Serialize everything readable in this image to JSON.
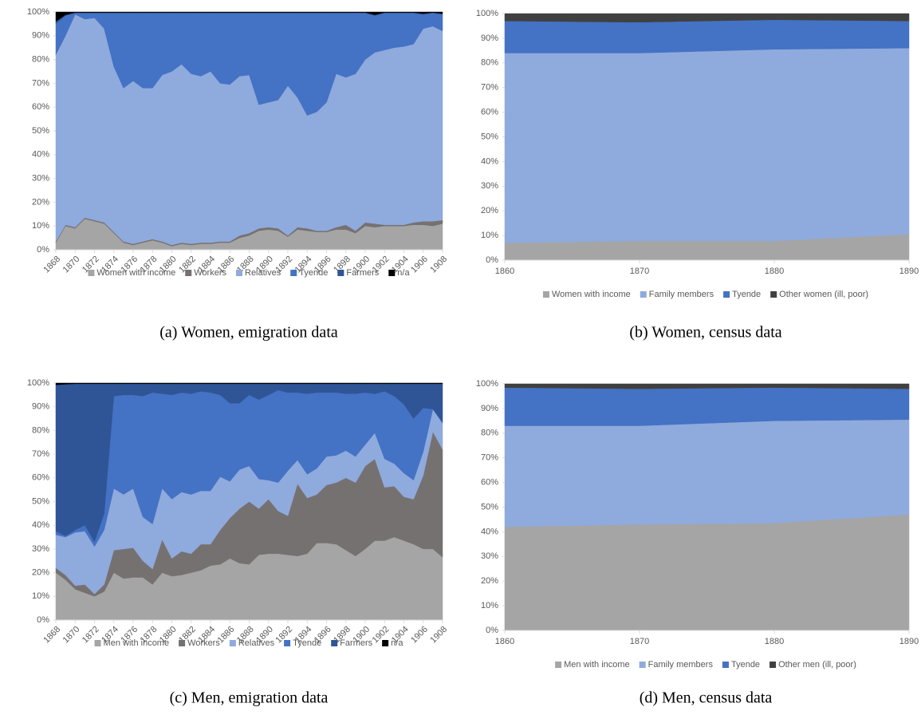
{
  "chart_data": [
    {
      "type": "area",
      "caption": "(a) Women, emigration data",
      "x": [
        1868,
        1869,
        1870,
        1871,
        1872,
        1873,
        1874,
        1875,
        1876,
        1877,
        1878,
        1879,
        1880,
        1881,
        1882,
        1883,
        1884,
        1885,
        1886,
        1887,
        1888,
        1889,
        1890,
        1891,
        1892,
        1893,
        1894,
        1895,
        1896,
        1897,
        1898,
        1899,
        1900,
        1901,
        1902,
        1903,
        1904,
        1905,
        1906,
        1907,
        1908
      ],
      "xlim": [
        1868,
        1908
      ],
      "xticks": [
        1868,
        1870,
        1872,
        1874,
        1876,
        1878,
        1880,
        1882,
        1884,
        1886,
        1888,
        1890,
        1892,
        1894,
        1896,
        1898,
        1900,
        1902,
        1904,
        1906,
        1908
      ],
      "ylim": [
        0,
        100
      ],
      "yticks": [
        {
          "value": 0,
          "label": "0%"
        },
        {
          "value": 10,
          "label": "10%"
        },
        {
          "value": 20,
          "label": "20%"
        },
        {
          "value": 30,
          "label": "30%"
        },
        {
          "value": 40,
          "label": "40%"
        },
        {
          "value": 50,
          "label": "50%"
        },
        {
          "value": 60,
          "label": "60%"
        },
        {
          "value": 70,
          "label": "70%"
        },
        {
          "value": 80,
          "label": "80%"
        },
        {
          "value": 90,
          "label": "90%"
        },
        {
          "value": 100,
          "label": "100%"
        }
      ],
      "series": [
        {
          "name": "Women with income",
          "color": "#a5a5a5",
          "values": [
            3,
            10,
            9,
            13,
            12,
            11,
            7,
            3,
            2,
            3,
            4,
            3,
            1.5,
            2.5,
            2,
            2.5,
            2.5,
            3,
            3,
            5,
            6,
            8,
            8.5,
            8,
            5.5,
            8.5,
            8,
            7.5,
            7.5,
            8.5,
            8.5,
            7,
            10,
            9.5,
            10,
            10,
            10,
            10.5,
            10.5,
            10,
            11
          ]
        },
        {
          "name": "Workers",
          "color": "#767171",
          "values": [
            0.5,
            0.5,
            0.5,
            0.5,
            0.5,
            0.5,
            0.5,
            0.5,
            0.5,
            0.5,
            0.5,
            0.5,
            0.5,
            0.5,
            0.5,
            0.5,
            0.5,
            0.5,
            0.5,
            1,
            1,
            1,
            1,
            1,
            0.5,
            1,
            1,
            0.5,
            0.5,
            1,
            2,
            1,
            1.5,
            1.5,
            0.5,
            0.5,
            0.5,
            1,
            1.5,
            2,
            1.5
          ]
        },
        {
          "name": "Relatives",
          "color": "#8faadc",
          "values": [
            78.5,
            79.5,
            89.5,
            83.5,
            85,
            81.5,
            69.5,
            64.5,
            68.5,
            64.5,
            63.5,
            70,
            73,
            75,
            71.5,
            70,
            72,
            66.5,
            66,
            67,
            66.5,
            52,
            52.5,
            54,
            63,
            54.5,
            47.5,
            50,
            54,
            64.5,
            62,
            66,
            68.5,
            72,
            73.5,
            74.5,
            75,
            75,
            81,
            82,
            79.5
          ]
        },
        {
          "name": "Tyende",
          "color": "#4472c4",
          "values": [
            13,
            8.5,
            0.5,
            2.5,
            2,
            6.5,
            22.5,
            31.5,
            28.5,
            31.5,
            31.5,
            26,
            24.5,
            21.5,
            25.5,
            26.5,
            24.5,
            29.5,
            30,
            26.5,
            26,
            38.5,
            37.5,
            36.5,
            30.5,
            35.5,
            43,
            41.5,
            37.5,
            25.5,
            27,
            25.5,
            19.5,
            15.5,
            15.5,
            14.5,
            14,
            13,
            6,
            5.5,
            7
          ]
        },
        {
          "name": "Farmers",
          "color": "#2f5597",
          "values": [
            1,
            0.3,
            0.3,
            0.3,
            0.3,
            0.3,
            0.3,
            0.3,
            0.3,
            0.3,
            0.3,
            0.3,
            0.3,
            0.3,
            0.3,
            0.3,
            0.3,
            0.3,
            0.3,
            0.3,
            0.3,
            0.3,
            0.3,
            0.3,
            0.3,
            0.3,
            0.3,
            0.3,
            0.3,
            0.3,
            0.3,
            0.3,
            0.3,
            0.3,
            0.3,
            0.3,
            0.3,
            0.3,
            0.3,
            0.3,
            0.3
          ]
        },
        {
          "name": "n/a",
          "color": "#000000",
          "values": [
            4,
            1.2,
            0.2,
            0.2,
            0.2,
            0.2,
            0.2,
            0.2,
            0.2,
            0.2,
            0.2,
            0.2,
            0.2,
            0.2,
            0.2,
            0.2,
            0.2,
            0.2,
            0.2,
            0.2,
            0.2,
            0.2,
            0.2,
            0.2,
            0.2,
            0.2,
            0.2,
            0.2,
            0.2,
            0.2,
            0.2,
            0.2,
            0.2,
            1.2,
            0.2,
            0.2,
            0.2,
            0.2,
            0.7,
            0.2,
            0.7
          ]
        }
      ]
    },
    {
      "type": "area",
      "caption": "(b) Women, census data",
      "x": [
        1860,
        1870,
        1880,
        1890
      ],
      "xlim": [
        1860,
        1890
      ],
      "xticks": [
        1860,
        1870,
        1880,
        1890
      ],
      "ylim": [
        0,
        100
      ],
      "yticks": [
        {
          "value": 0,
          "label": "0%"
        },
        {
          "value": 10,
          "label": "10%"
        },
        {
          "value": 20,
          "label": "20%"
        },
        {
          "value": 30,
          "label": "30%"
        },
        {
          "value": 40,
          "label": "40%"
        },
        {
          "value": 50,
          "label": "50%"
        },
        {
          "value": 60,
          "label": "60%"
        },
        {
          "value": 70,
          "label": "70%"
        },
        {
          "value": 80,
          "label": "80%"
        },
        {
          "value": 90,
          "label": "90%"
        },
        {
          "value": 100,
          "label": "100%"
        }
      ],
      "series": [
        {
          "name": "Women with income",
          "color": "#a5a5a5",
          "values": [
            7,
            7.8,
            7.8,
            10.5
          ]
        },
        {
          "name": "Family members",
          "color": "#8faadc",
          "values": [
            77,
            76.2,
            77.7,
            75.5
          ]
        },
        {
          "name": "Tyende",
          "color": "#4472c4",
          "values": [
            13,
            12.5,
            12,
            11
          ]
        },
        {
          "name": "Other women (ill, poor)",
          "color": "#404040",
          "values": [
            3,
            3.5,
            2.5,
            3
          ]
        }
      ]
    },
    {
      "type": "area",
      "caption": "(c) Men, emigration data",
      "x": [
        1868,
        1869,
        1870,
        1871,
        1872,
        1873,
        1874,
        1875,
        1876,
        1877,
        1878,
        1879,
        1880,
        1881,
        1882,
        1883,
        1884,
        1885,
        1886,
        1887,
        1888,
        1889,
        1890,
        1891,
        1892,
        1893,
        1894,
        1895,
        1896,
        1897,
        1898,
        1899,
        1900,
        1901,
        1902,
        1903,
        1904,
        1905,
        1906,
        1907,
        1908
      ],
      "xlim": [
        1868,
        1908
      ],
      "xticks": [
        1868,
        1870,
        1872,
        1874,
        1876,
        1878,
        1880,
        1882,
        1884,
        1886,
        1888,
        1890,
        1892,
        1894,
        1896,
        1898,
        1900,
        1902,
        1904,
        1906,
        1908
      ],
      "ylim": [
        0,
        100
      ],
      "yticks": [
        {
          "value": 0,
          "label": "0%"
        },
        {
          "value": 10,
          "label": "10%"
        },
        {
          "value": 20,
          "label": "20%"
        },
        {
          "value": 30,
          "label": "30%"
        },
        {
          "value": 40,
          "label": "40%"
        },
        {
          "value": 50,
          "label": "50%"
        },
        {
          "value": 60,
          "label": "60%"
        },
        {
          "value": 70,
          "label": "70%"
        },
        {
          "value": 80,
          "label": "80%"
        },
        {
          "value": 90,
          "label": "90%"
        },
        {
          "value": 100,
          "label": "100%"
        }
      ],
      "series": [
        {
          "name": "Men with income",
          "color": "#a5a5a5",
          "values": [
            20,
            17,
            13,
            11.5,
            10,
            12,
            20,
            17.5,
            18,
            18,
            15,
            20,
            18.5,
            19,
            20,
            21,
            23,
            23.5,
            26,
            24,
            23.5,
            27.5,
            28,
            28,
            27.5,
            27,
            28,
            32.5,
            32.5,
            32,
            29.5,
            27,
            30,
            33.5,
            33.5,
            35,
            33.5,
            32,
            30,
            30,
            26.5
          ]
        },
        {
          "name": "Workers",
          "color": "#767171",
          "values": [
            2,
            2,
            1.5,
            3.5,
            1,
            3,
            9.5,
            12.5,
            12.5,
            7,
            6.5,
            14,
            7.5,
            10,
            8,
            11,
            9,
            14.5,
            17,
            23,
            26.5,
            19.5,
            23,
            18,
            16.5,
            30.5,
            23.5,
            20.5,
            24.5,
            26,
            30.5,
            31,
            35,
            34.5,
            22.5,
            21.5,
            18.5,
            19,
            31,
            49.5,
            45.5
          ]
        },
        {
          "name": "Relatives",
          "color": "#8faadc",
          "values": [
            14,
            16,
            22.5,
            22.5,
            20,
            23,
            26,
            23,
            25,
            18.5,
            19,
            21.5,
            25,
            25,
            25,
            22.5,
            22.5,
            22.5,
            15.5,
            16.5,
            15,
            12.5,
            8,
            12,
            19,
            10,
            10,
            11,
            12,
            11.5,
            11.5,
            11,
            9,
            11,
            12,
            9.5,
            10,
            8,
            10,
            9.5,
            11
          ]
        },
        {
          "name": "Tyende",
          "color": "#4472c4",
          "values": [
            1.5,
            0.5,
            1,
            2.5,
            2,
            7,
            39,
            42,
            39.5,
            51,
            55.5,
            40,
            44,
            42,
            42.5,
            42,
            41.5,
            34.5,
            33,
            28,
            30,
            33.5,
            36,
            39,
            33,
            28.5,
            34,
            32,
            27,
            26.5,
            24,
            26.5,
            22,
            16.5,
            28.5,
            28.5,
            29,
            26,
            18.5,
            0,
            0.5
          ]
        },
        {
          "name": "Farmers",
          "color": "#2f5597",
          "values": [
            61.7,
            64,
            61.7,
            59.7,
            66.7,
            54.7,
            5.2,
            4.7,
            4.7,
            5.2,
            3.7,
            4.2,
            4.7,
            3.7,
            4.2,
            3.2,
            3.7,
            4.7,
            8.2,
            8.2,
            4.7,
            6.7,
            4.7,
            2.7,
            3.7,
            3.7,
            4.2,
            3.7,
            3.7,
            3.7,
            4.2,
            4.2,
            3.7,
            4.2,
            3.2,
            5.2,
            8.7,
            14.7,
            10.2,
            10.7,
            16.2
          ]
        },
        {
          "name": "n/a",
          "color": "#000000",
          "values": [
            0.8,
            0.5,
            0.3,
            0.3,
            0.3,
            0.3,
            0.3,
            0.3,
            0.3,
            0.3,
            0.3,
            0.3,
            0.3,
            0.3,
            0.3,
            0.3,
            0.3,
            0.3,
            0.3,
            0.3,
            0.3,
            0.3,
            0.3,
            0.3,
            0.3,
            0.3,
            0.3,
            0.3,
            0.3,
            0.3,
            0.3,
            0.3,
            0.3,
            0.3,
            0.3,
            0.3,
            0.3,
            0.3,
            0.3,
            0.3,
            0.3
          ]
        }
      ]
    },
    {
      "type": "area",
      "caption": "(d) Men, census data",
      "x": [
        1860,
        1870,
        1880,
        1890
      ],
      "xlim": [
        1860,
        1890
      ],
      "xticks": [
        1860,
        1870,
        1880,
        1890
      ],
      "ylim": [
        0,
        100
      ],
      "yticks": [
        {
          "value": 0,
          "label": "0%"
        },
        {
          "value": 10,
          "label": "10%"
        },
        {
          "value": 20,
          "label": "20%"
        },
        {
          "value": 30,
          "label": "30%"
        },
        {
          "value": 40,
          "label": "40%"
        },
        {
          "value": 50,
          "label": "50%"
        },
        {
          "value": 60,
          "label": "60%"
        },
        {
          "value": 70,
          "label": "70%"
        },
        {
          "value": 80,
          "label": "80%"
        },
        {
          "value": 90,
          "label": "90%"
        },
        {
          "value": 100,
          "label": "100%"
        }
      ],
      "series": [
        {
          "name": "Men with income",
          "color": "#a5a5a5",
          "values": [
            42,
            43,
            43.5,
            47
          ]
        },
        {
          "name": "Family members",
          "color": "#8faadc",
          "values": [
            41,
            40,
            41.5,
            38.5
          ]
        },
        {
          "name": "Tyende",
          "color": "#4472c4",
          "values": [
            15.5,
            15,
            13.5,
            12.5
          ]
        },
        {
          "name": "Other men (ill, poor)",
          "color": "#404040",
          "values": [
            1.5,
            2,
            1.5,
            2
          ]
        }
      ]
    }
  ]
}
